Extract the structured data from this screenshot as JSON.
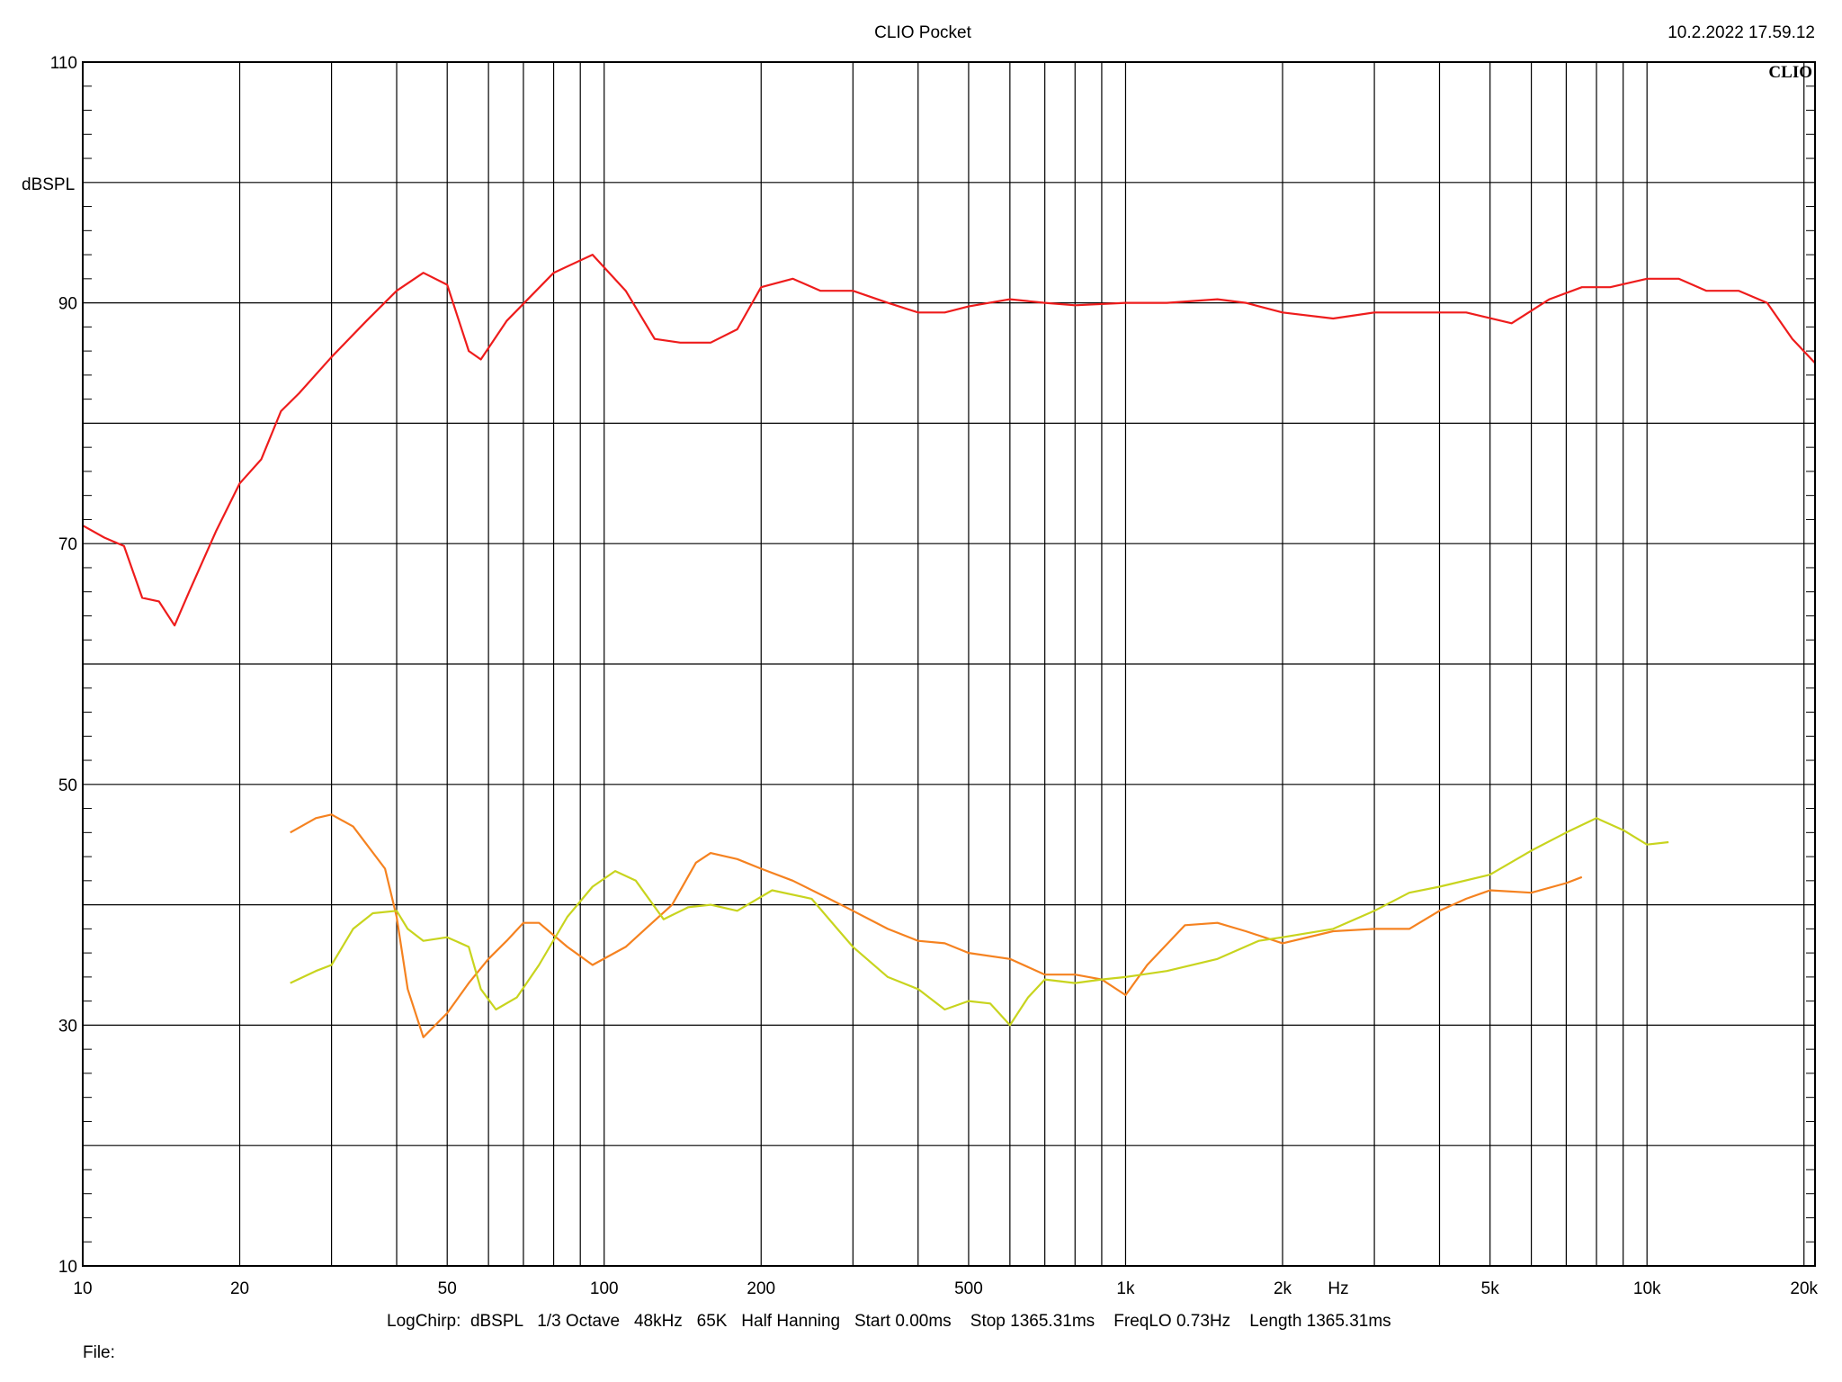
{
  "header": {
    "title": "CLIO Pocket",
    "timestamp": "10.2.2022 17.59.12",
    "brand": "CLIO"
  },
  "footer": {
    "settings": "LogChirp:  dBSPL   1/3 Octave   48kHz   65K   Half Hanning   Start 0.00ms    Stop 1365.31ms    FreqLO 0.73Hz    Length 1365.31ms",
    "file_label": "File:"
  },
  "chart_data": {
    "type": "line",
    "title": "CLIO Pocket",
    "xlabel": "Hz",
    "ylabel": "dBSPL",
    "x_scale": "log",
    "xlim": [
      10,
      21000
    ],
    "ylim": [
      10,
      110
    ],
    "grid": true,
    "x_ticks": [
      {
        "value": 10,
        "label": "10"
      },
      {
        "value": 20,
        "label": "20"
      },
      {
        "value": 50,
        "label": "50"
      },
      {
        "value": 100,
        "label": "100"
      },
      {
        "value": 200,
        "label": "200"
      },
      {
        "value": 500,
        "label": "500"
      },
      {
        "value": 1000,
        "label": "1k"
      },
      {
        "value": 2000,
        "label": "2k"
      },
      {
        "value": 5000,
        "label": "5k"
      },
      {
        "value": 10000,
        "label": "10k"
      },
      {
        "value": 20000,
        "label": "20k"
      }
    ],
    "y_ticks": [
      {
        "value": 10,
        "label": "10"
      },
      {
        "value": 30,
        "label": "30"
      },
      {
        "value": 50,
        "label": "50"
      },
      {
        "value": 70,
        "label": "70"
      },
      {
        "value": 90,
        "label": "90"
      },
      {
        "value": 110,
        "label": "110"
      }
    ],
    "series": [
      {
        "color": "#ee1c1c",
        "points": [
          [
            10,
            71.5
          ],
          [
            11,
            70.5
          ],
          [
            12,
            69.8
          ],
          [
            13,
            65.5
          ],
          [
            14,
            65.2
          ],
          [
            15,
            63.2
          ],
          [
            16,
            66
          ],
          [
            18,
            71
          ],
          [
            20,
            75
          ],
          [
            22,
            77
          ],
          [
            24,
            81
          ],
          [
            26,
            82.5
          ],
          [
            30,
            85.5
          ],
          [
            35,
            88.5
          ],
          [
            40,
            91
          ],
          [
            45,
            92.5
          ],
          [
            50,
            91.5
          ],
          [
            55,
            86
          ],
          [
            58,
            85.3
          ],
          [
            65,
            88.5
          ],
          [
            80,
            92.5
          ],
          [
            95,
            94
          ],
          [
            110,
            91
          ],
          [
            125,
            87
          ],
          [
            140,
            86.7
          ],
          [
            160,
            86.7
          ],
          [
            180,
            87.8
          ],
          [
            200,
            91.3
          ],
          [
            230,
            92
          ],
          [
            260,
            91
          ],
          [
            300,
            91
          ],
          [
            350,
            90
          ],
          [
            400,
            89.2
          ],
          [
            450,
            89.2
          ],
          [
            500,
            89.7
          ],
          [
            600,
            90.3
          ],
          [
            700,
            90
          ],
          [
            800,
            89.8
          ],
          [
            1000,
            90
          ],
          [
            1200,
            90
          ],
          [
            1500,
            90.3
          ],
          [
            1700,
            90
          ],
          [
            2000,
            89.2
          ],
          [
            2500,
            88.7
          ],
          [
            3000,
            89.2
          ],
          [
            3500,
            89.2
          ],
          [
            4500,
            89.2
          ],
          [
            5500,
            88.3
          ],
          [
            6500,
            90.3
          ],
          [
            7500,
            91.3
          ],
          [
            8500,
            91.3
          ],
          [
            10000,
            92
          ],
          [
            11500,
            92
          ],
          [
            13000,
            91
          ],
          [
            15000,
            91
          ],
          [
            17000,
            90
          ],
          [
            19000,
            87
          ],
          [
            21000,
            85
          ]
        ]
      },
      {
        "color": "#f58220",
        "points": [
          [
            25,
            46
          ],
          [
            28,
            47.2
          ],
          [
            30,
            47.5
          ],
          [
            33,
            46.5
          ],
          [
            38,
            43
          ],
          [
            40,
            39
          ],
          [
            42,
            33
          ],
          [
            45,
            29
          ],
          [
            50,
            31
          ],
          [
            55,
            33.5
          ],
          [
            60,
            35.5
          ],
          [
            65,
            37
          ],
          [
            70,
            38.5
          ],
          [
            75,
            38.5
          ],
          [
            85,
            36.5
          ],
          [
            95,
            35
          ],
          [
            110,
            36.5
          ],
          [
            120,
            38
          ],
          [
            135,
            40
          ],
          [
            150,
            43.5
          ],
          [
            160,
            44.3
          ],
          [
            180,
            43.8
          ],
          [
            200,
            43
          ],
          [
            230,
            42
          ],
          [
            270,
            40.5
          ],
          [
            300,
            39.5
          ],
          [
            350,
            38
          ],
          [
            400,
            37
          ],
          [
            450,
            36.8
          ],
          [
            500,
            36
          ],
          [
            600,
            35.5
          ],
          [
            700,
            34.2
          ],
          [
            800,
            34.2
          ],
          [
            900,
            33.8
          ],
          [
            1000,
            32.5
          ],
          [
            1100,
            35
          ],
          [
            1300,
            38.3
          ],
          [
            1500,
            38.5
          ],
          [
            1700,
            37.8
          ],
          [
            2000,
            36.8
          ],
          [
            2500,
            37.8
          ],
          [
            3000,
            38
          ],
          [
            3500,
            38
          ],
          [
            4000,
            39.5
          ],
          [
            4500,
            40.5
          ],
          [
            5000,
            41.2
          ],
          [
            6000,
            41
          ],
          [
            7000,
            41.8
          ],
          [
            7500,
            42.3
          ]
        ]
      },
      {
        "color": "#c8d41e",
        "points": [
          [
            25,
            33.5
          ],
          [
            28,
            34.5
          ],
          [
            30,
            35
          ],
          [
            33,
            38
          ],
          [
            36,
            39.3
          ],
          [
            40,
            39.5
          ],
          [
            42,
            38
          ],
          [
            45,
            37
          ],
          [
            50,
            37.3
          ],
          [
            55,
            36.5
          ],
          [
            58,
            33
          ],
          [
            62,
            31.3
          ],
          [
            68,
            32.3
          ],
          [
            75,
            35
          ],
          [
            85,
            39
          ],
          [
            95,
            41.5
          ],
          [
            105,
            42.8
          ],
          [
            115,
            42
          ],
          [
            130,
            38.8
          ],
          [
            145,
            39.8
          ],
          [
            160,
            40
          ],
          [
            180,
            39.5
          ],
          [
            210,
            41.2
          ],
          [
            250,
            40.5
          ],
          [
            280,
            38
          ],
          [
            300,
            36.5
          ],
          [
            350,
            34
          ],
          [
            400,
            33
          ],
          [
            450,
            31.3
          ],
          [
            500,
            32
          ],
          [
            550,
            31.8
          ],
          [
            600,
            30
          ],
          [
            650,
            32.3
          ],
          [
            700,
            33.8
          ],
          [
            800,
            33.5
          ],
          [
            900,
            33.8
          ],
          [
            1000,
            34
          ],
          [
            1200,
            34.5
          ],
          [
            1500,
            35.5
          ],
          [
            1800,
            37
          ],
          [
            2000,
            37.3
          ],
          [
            2500,
            38
          ],
          [
            3000,
            39.5
          ],
          [
            3500,
            41
          ],
          [
            4000,
            41.5
          ],
          [
            5000,
            42.5
          ],
          [
            6000,
            44.5
          ],
          [
            7000,
            46
          ],
          [
            8000,
            47.2
          ],
          [
            9000,
            46.2
          ],
          [
            10000,
            45
          ],
          [
            11000,
            45.2
          ]
        ]
      }
    ]
  }
}
